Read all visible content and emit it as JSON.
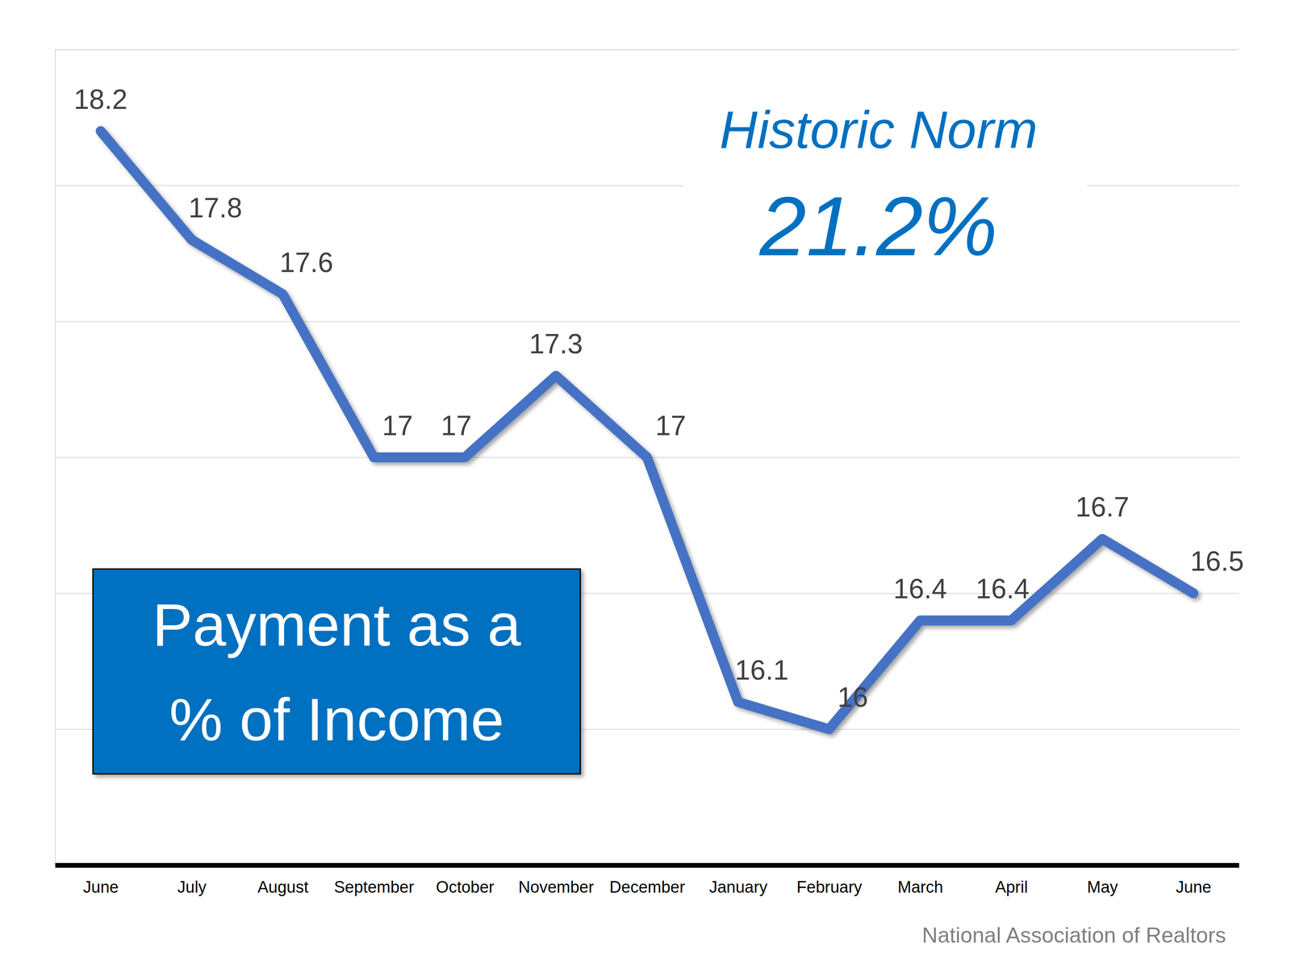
{
  "chart_data": {
    "type": "line",
    "title": "Payment as a % of Income",
    "categories": [
      "June",
      "July",
      "August",
      "September",
      "October",
      "November",
      "December",
      "January",
      "February",
      "March",
      "April",
      "May",
      "June"
    ],
    "values": [
      18.2,
      17.8,
      17.6,
      17,
      17,
      17.3,
      17,
      16.1,
      16,
      16.4,
      16.4,
      16.7,
      16.5
    ],
    "color": "#4472c4",
    "ylim": [
      15.5,
      18.5
    ],
    "yticks": [
      15.5,
      16,
      16.5,
      17,
      17.5,
      18,
      18.5
    ],
    "grid": true,
    "data_labels": true,
    "tick_labels": "x",
    "annotations": [
      "Historic Norm",
      "21.2%"
    ],
    "source": "National Association of Realtors"
  }
}
